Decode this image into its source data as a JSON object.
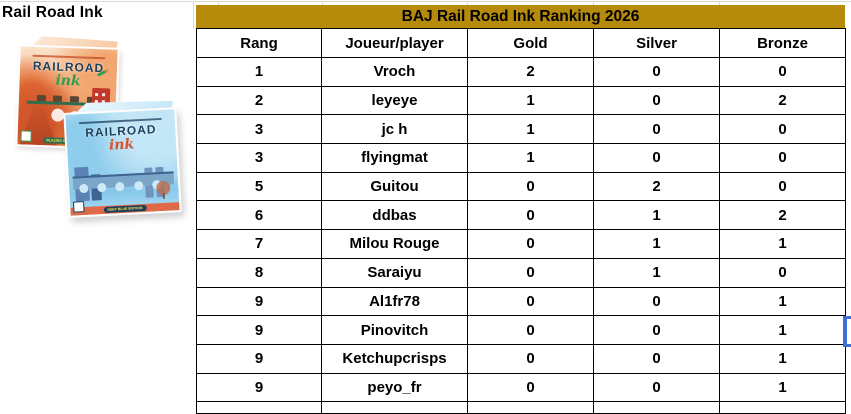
{
  "left_panel": {
    "title": "Rail Road Ink"
  },
  "banner": {
    "title": "BAJ Rail Road Ink Ranking 2026",
    "bg_color": "#B68A0A"
  },
  "boxes": {
    "red": {
      "brand": "RAILROAD",
      "script": "ink",
      "edition_label": "BLAZING RED EDITION"
    },
    "blue": {
      "brand": "RAILROAD",
      "script": "ink",
      "edition_label": "DEEP BLUE EDITION"
    }
  },
  "table": {
    "headers": [
      "Rang",
      "Joueur/player",
      "Gold",
      "Silver",
      "Bronze"
    ],
    "rows": [
      [
        "1",
        "Vroch",
        "2",
        "0",
        "0"
      ],
      [
        "2",
        "leyeye",
        "1",
        "0",
        "2"
      ],
      [
        "3",
        "jc h",
        "1",
        "0",
        "0"
      ],
      [
        "3",
        "flyingmat",
        "1",
        "0",
        "0"
      ],
      [
        "5",
        "Guitou",
        "0",
        "2",
        "0"
      ],
      [
        "6",
        "ddbas",
        "0",
        "1",
        "2"
      ],
      [
        "7",
        "Milou Rouge",
        "0",
        "1",
        "1"
      ],
      [
        "8",
        "Saraiyu",
        "0",
        "1",
        "0"
      ],
      [
        "9",
        "Al1fr78",
        "0",
        "0",
        "1"
      ],
      [
        "9",
        "Pinovitch",
        "0",
        "0",
        "1"
      ],
      [
        "9",
        "Ketchupcrisps",
        "0",
        "0",
        "1"
      ],
      [
        "9",
        "peyo_fr",
        "0",
        "0",
        "1"
      ]
    ]
  },
  "selection": {
    "border_color": "#3d6fd6"
  }
}
